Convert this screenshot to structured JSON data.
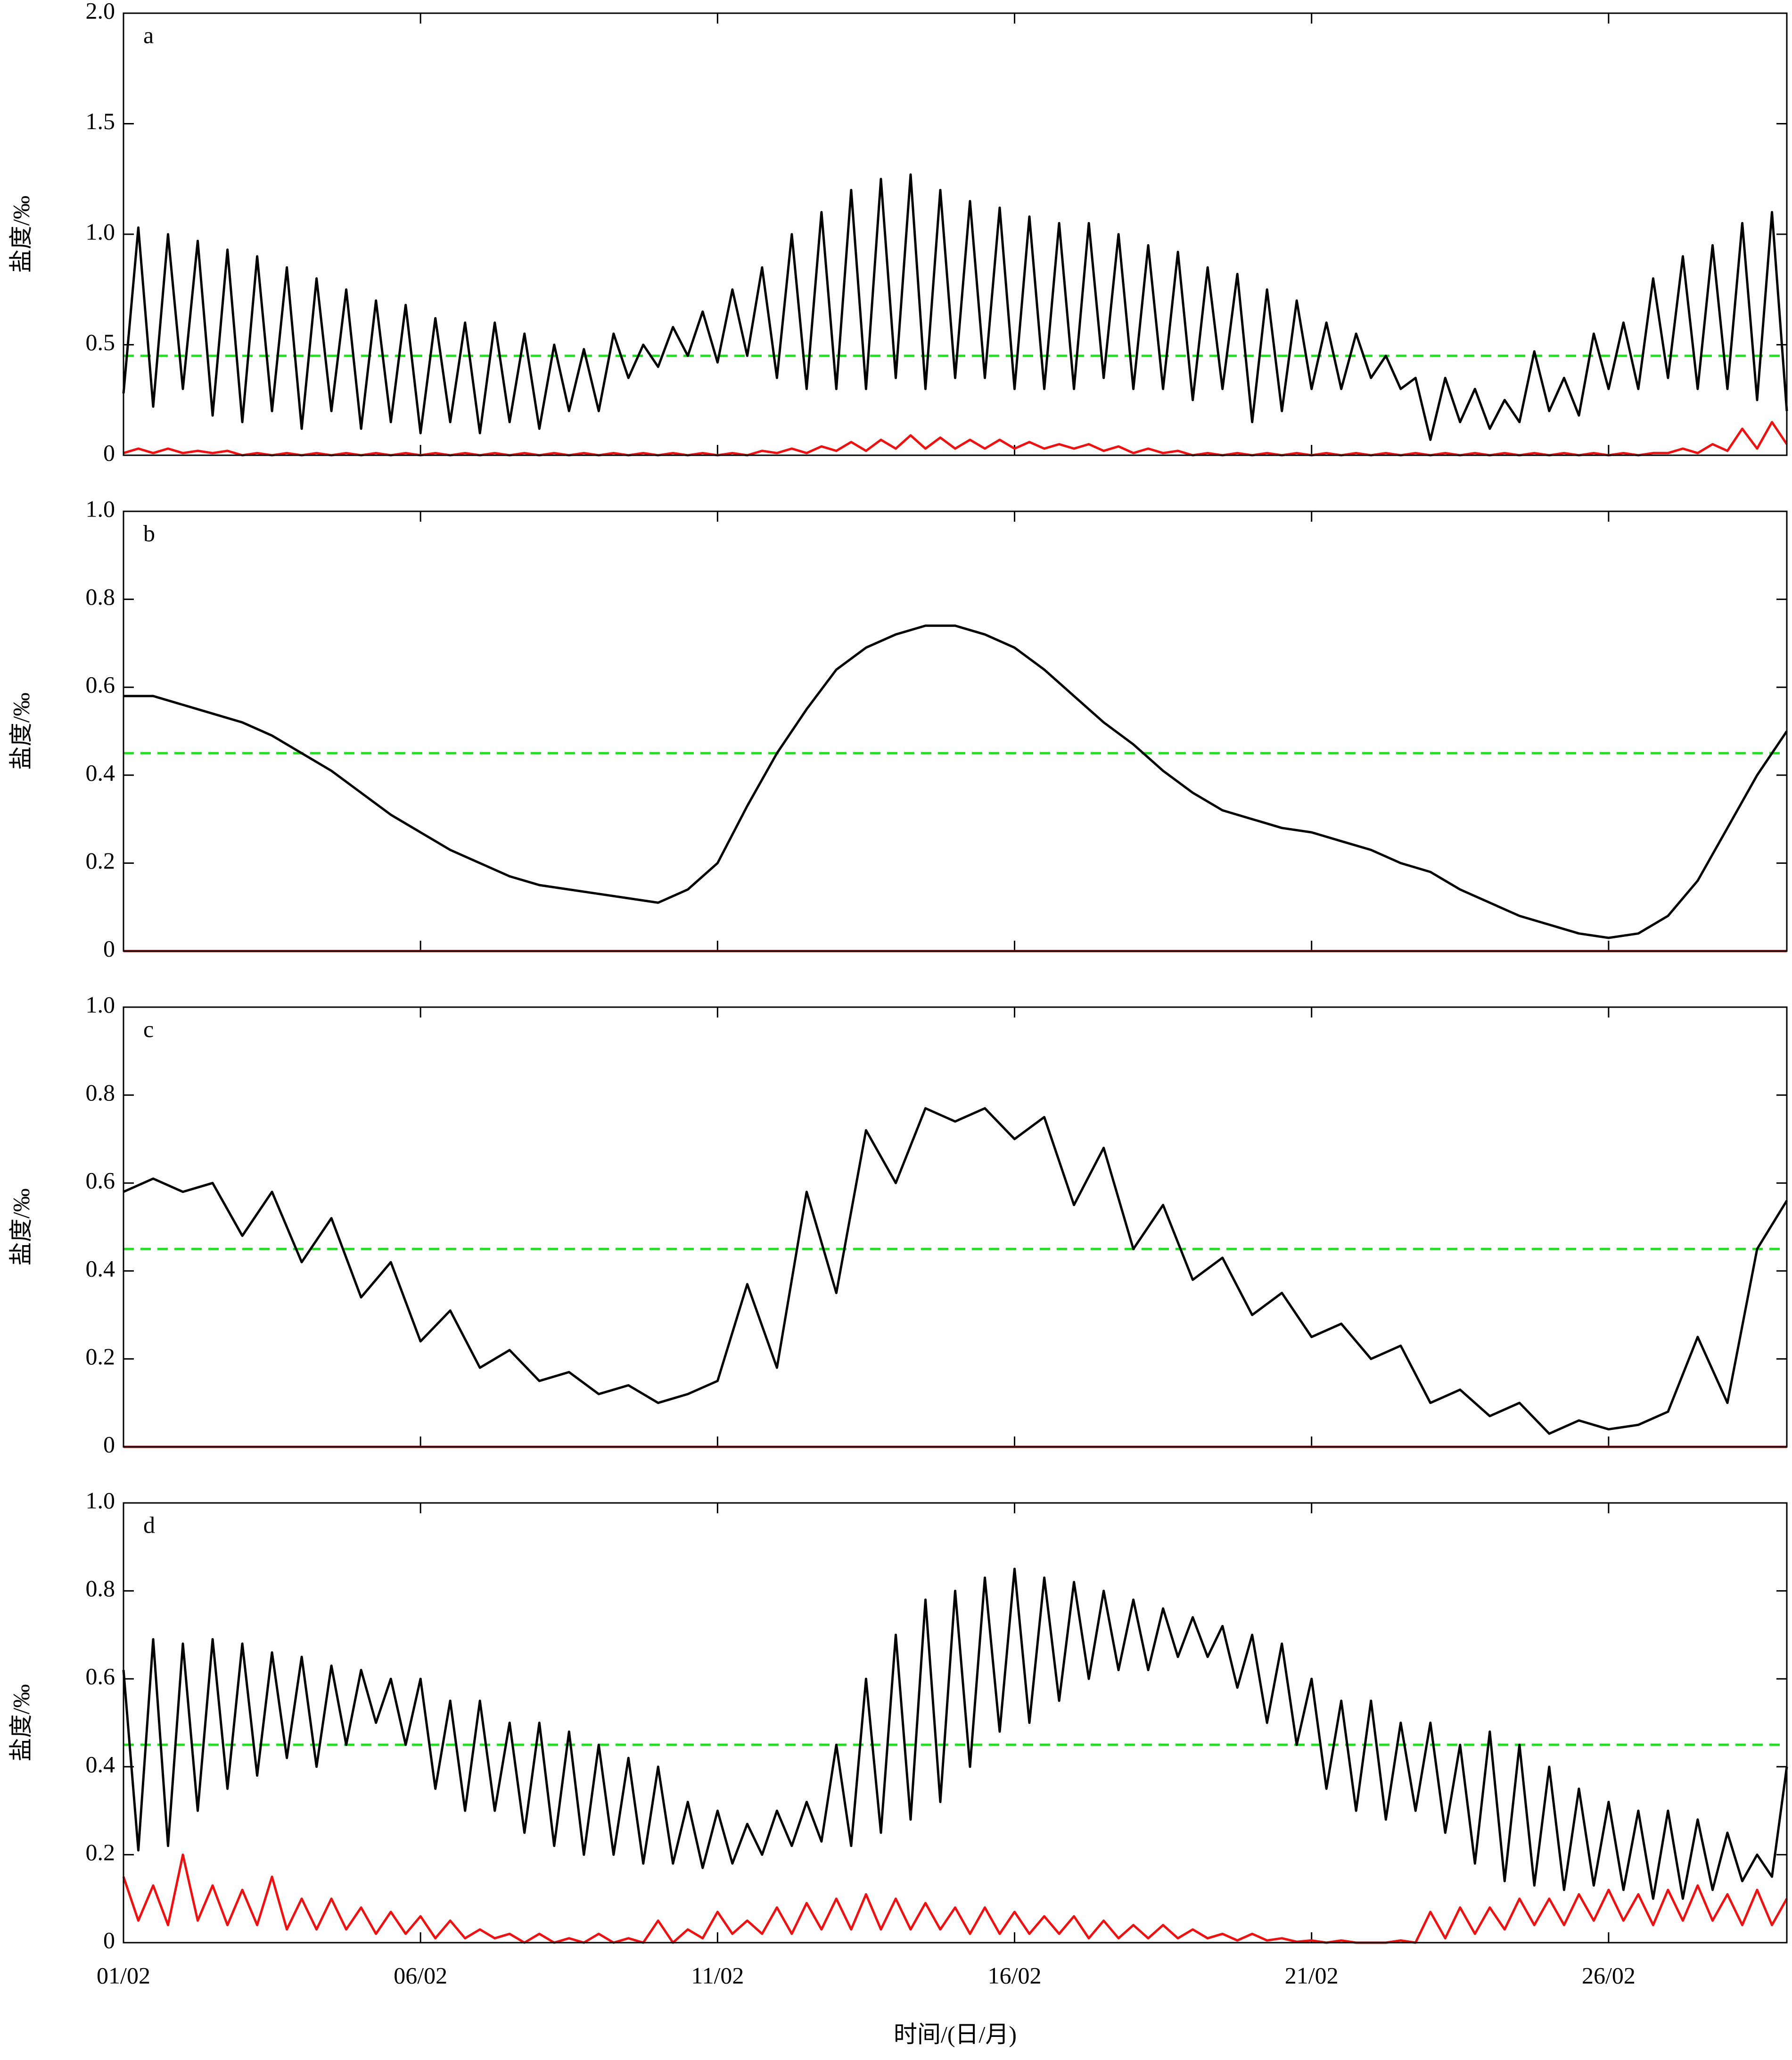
{
  "chart_data": [
    {
      "type": "line",
      "label": "a",
      "ylabel": "盐度/‰",
      "xlim": [
        0,
        28
      ],
      "ylim": [
        0,
        2
      ],
      "yticks": [
        0,
        0.5,
        {
          "value": 1,
          "label": "1.0"
        },
        1.5,
        {
          "value": 2,
          "label": "2.0"
        }
      ],
      "reference_line": {
        "value": 0.45,
        "color": "#22dd22"
      },
      "x": [
        0,
        0.25,
        0.5,
        0.75,
        1,
        1.25,
        1.5,
        1.75,
        2,
        2.25,
        2.5,
        2.75,
        3,
        3.25,
        3.5,
        3.75,
        4,
        4.25,
        4.5,
        4.75,
        5,
        5.25,
        5.5,
        5.75,
        6,
        6.25,
        6.5,
        6.75,
        7,
        7.25,
        7.5,
        7.75,
        8,
        8.25,
        8.5,
        8.75,
        9,
        9.25,
        9.5,
        9.75,
        10,
        10.25,
        10.5,
        10.75,
        11,
        11.25,
        11.5,
        11.75,
        12,
        12.25,
        12.5,
        12.75,
        13,
        13.25,
        13.5,
        13.75,
        14,
        14.25,
        14.5,
        14.75,
        15,
        15.25,
        15.5,
        15.75,
        16,
        16.25,
        16.5,
        16.75,
        17,
        17.25,
        17.5,
        17.75,
        18,
        18.25,
        18.5,
        18.75,
        19,
        19.25,
        19.5,
        19.75,
        20,
        20.25,
        20.5,
        20.75,
        21,
        21.25,
        21.5,
        21.75,
        22,
        22.25,
        22.5,
        22.75,
        23,
        23.25,
        23.5,
        23.75,
        24,
        24.25,
        24.5,
        24.75,
        25,
        25.25,
        25.5,
        25.75,
        26,
        26.25,
        26.5,
        26.75,
        27,
        27.25,
        27.5,
        27.75,
        28
      ],
      "series": [
        {
          "color": "#000000",
          "values": [
            0.28,
            1.03,
            0.22,
            1.0,
            0.3,
            0.97,
            0.18,
            0.93,
            0.15,
            0.9,
            0.2,
            0.85,
            0.12,
            0.8,
            0.2,
            0.75,
            0.12,
            0.7,
            0.15,
            0.68,
            0.1,
            0.62,
            0.15,
            0.6,
            0.1,
            0.6,
            0.15,
            0.55,
            0.12,
            0.5,
            0.2,
            0.48,
            0.2,
            0.55,
            0.35,
            0.5,
            0.4,
            0.58,
            0.45,
            0.65,
            0.42,
            0.75,
            0.45,
            0.85,
            0.35,
            1.0,
            0.3,
            1.1,
            0.3,
            1.2,
            0.3,
            1.25,
            0.35,
            1.27,
            0.3,
            1.2,
            0.35,
            1.15,
            0.35,
            1.12,
            0.3,
            1.08,
            0.3,
            1.05,
            0.3,
            1.05,
            0.35,
            1.0,
            0.3,
            0.95,
            0.3,
            0.92,
            0.25,
            0.85,
            0.3,
            0.82,
            0.15,
            0.75,
            0.2,
            0.7,
            0.3,
            0.6,
            0.3,
            0.55,
            0.35,
            0.45,
            0.3,
            0.35,
            0.07,
            0.35,
            0.15,
            0.3,
            0.12,
            0.25,
            0.15,
            0.47,
            0.2,
            0.35,
            0.18,
            0.55,
            0.3,
            0.6,
            0.3,
            0.8,
            0.35,
            0.9,
            0.3,
            0.95,
            0.3,
            1.05,
            0.25,
            1.1,
            0.2
          ]
        },
        {
          "color": "#ee1111",
          "values": [
            0.01,
            0.03,
            0.01,
            0.03,
            0.01,
            0.02,
            0.01,
            0.02,
            0,
            0.01,
            0,
            0.01,
            0,
            0.01,
            0,
            0.01,
            0,
            0.01,
            0,
            0.01,
            0,
            0.01,
            0,
            0.01,
            0,
            0.01,
            0,
            0.01,
            0,
            0.01,
            0,
            0.01,
            0,
            0.01,
            0,
            0.01,
            0,
            0.01,
            0,
            0.01,
            0,
            0.01,
            0,
            0.02,
            0.01,
            0.03,
            0.01,
            0.04,
            0.02,
            0.06,
            0.02,
            0.07,
            0.03,
            0.09,
            0.03,
            0.08,
            0.03,
            0.07,
            0.03,
            0.07,
            0.03,
            0.06,
            0.03,
            0.05,
            0.03,
            0.05,
            0.02,
            0.04,
            0.01,
            0.03,
            0.01,
            0.02,
            0,
            0.01,
            0,
            0.01,
            0,
            0.01,
            0,
            0.01,
            0,
            0.01,
            0,
            0.01,
            0,
            0.01,
            0,
            0.01,
            0,
            0.01,
            0,
            0.01,
            0,
            0.01,
            0,
            0.01,
            0,
            0.01,
            0,
            0.01,
            0,
            0.01,
            0,
            0.01,
            0.01,
            0.03,
            0.01,
            0.05,
            0.02,
            0.12,
            0.03,
            0.15,
            0.05
          ]
        }
      ]
    },
    {
      "type": "line",
      "label": "b",
      "ylabel": "盐度/‰",
      "xlim": [
        0,
        28
      ],
      "ylim": [
        0,
        1
      ],
      "yticks": [
        0,
        0.2,
        0.4,
        0.6,
        0.8,
        {
          "value": 1,
          "label": "1.0"
        }
      ],
      "reference_line": {
        "value": 0.45,
        "color": "#22dd22"
      },
      "x": [
        0,
        0.5,
        1,
        1.5,
        2,
        2.5,
        3,
        3.5,
        4,
        4.5,
        5,
        5.5,
        6,
        6.5,
        7,
        7.5,
        8,
        8.5,
        9,
        9.5,
        10,
        10.5,
        11,
        11.5,
        12,
        12.5,
        13,
        13.5,
        14,
        14.5,
        15,
        15.5,
        16,
        16.5,
        17,
        17.5,
        18,
        18.5,
        19,
        19.5,
        20,
        20.5,
        21,
        21.5,
        22,
        22.5,
        23,
        23.5,
        24,
        24.5,
        25,
        25.5,
        26,
        26.5,
        27,
        27.5,
        28
      ],
      "series": [
        {
          "color": "#000000",
          "values": [
            0.58,
            0.58,
            0.56,
            0.54,
            0.52,
            0.49,
            0.45,
            0.41,
            0.36,
            0.31,
            0.27,
            0.23,
            0.2,
            0.17,
            0.15,
            0.14,
            0.13,
            0.12,
            0.11,
            0.14,
            0.2,
            0.33,
            0.45,
            0.55,
            0.64,
            0.69,
            0.72,
            0.74,
            0.74,
            0.72,
            0.69,
            0.64,
            0.58,
            0.52,
            0.47,
            0.41,
            0.36,
            0.32,
            0.3,
            0.28,
            0.27,
            0.25,
            0.23,
            0.2,
            0.18,
            0.14,
            0.11,
            0.08,
            0.06,
            0.04,
            0.03,
            0.04,
            0.08,
            0.16,
            0.28,
            0.4,
            0.5
          ]
        },
        {
          "color": "#ee1111",
          "values": [
            0,
            0,
            0,
            0,
            0,
            0,
            0,
            0,
            0,
            0,
            0,
            0,
            0,
            0,
            0,
            0,
            0,
            0,
            0,
            0,
            0,
            0,
            0,
            0,
            0,
            0,
            0,
            0,
            0,
            0,
            0,
            0,
            0,
            0,
            0,
            0,
            0,
            0,
            0,
            0,
            0,
            0,
            0,
            0,
            0,
            0,
            0,
            0,
            0,
            0,
            0,
            0,
            0,
            0,
            0,
            0,
            0
          ]
        }
      ]
    },
    {
      "type": "line",
      "label": "c",
      "ylabel": "盐度/‰",
      "xlim": [
        0,
        28
      ],
      "ylim": [
        0,
        1
      ],
      "yticks": [
        0,
        0.2,
        0.4,
        0.6,
        0.8,
        {
          "value": 1,
          "label": "1.0"
        }
      ],
      "reference_line": {
        "value": 0.45,
        "color": "#22dd22"
      },
      "x": [
        0,
        0.5,
        1,
        1.5,
        2,
        2.5,
        3,
        3.5,
        4,
        4.5,
        5,
        5.5,
        6,
        6.5,
        7,
        7.5,
        8,
        8.5,
        9,
        9.5,
        10,
        10.5,
        11,
        11.5,
        12,
        12.5,
        13,
        13.5,
        14,
        14.5,
        15,
        15.5,
        16,
        16.5,
        17,
        17.5,
        18,
        18.5,
        19,
        19.5,
        20,
        20.5,
        21,
        21.5,
        22,
        22.5,
        23,
        23.5,
        24,
        24.5,
        25,
        25.5,
        26,
        26.5,
        27,
        27.5,
        28
      ],
      "series": [
        {
          "color": "#000000",
          "values": [
            0.58,
            0.61,
            0.58,
            0.6,
            0.48,
            0.58,
            0.42,
            0.52,
            0.34,
            0.42,
            0.24,
            0.31,
            0.18,
            0.22,
            0.15,
            0.17,
            0.12,
            0.14,
            0.1,
            0.12,
            0.15,
            0.37,
            0.18,
            0.58,
            0.35,
            0.72,
            0.6,
            0.77,
            0.74,
            0.77,
            0.7,
            0.75,
            0.55,
            0.68,
            0.45,
            0.55,
            0.38,
            0.43,
            0.3,
            0.35,
            0.25,
            0.28,
            0.2,
            0.23,
            0.1,
            0.13,
            0.07,
            0.1,
            0.03,
            0.06,
            0.04,
            0.05,
            0.08,
            0.25,
            0.1,
            0.45,
            0.56
          ]
        },
        {
          "color": "#ee1111",
          "values": [
            0,
            0,
            0,
            0,
            0,
            0,
            0,
            0,
            0,
            0,
            0,
            0,
            0,
            0,
            0,
            0,
            0,
            0,
            0,
            0,
            0,
            0,
            0,
            0,
            0,
            0,
            0,
            0,
            0,
            0,
            0,
            0,
            0,
            0,
            0,
            0,
            0,
            0,
            0,
            0,
            0,
            0,
            0,
            0,
            0,
            0,
            0,
            0,
            0,
            0,
            0,
            0,
            0,
            0,
            0,
            0,
            0
          ]
        }
      ]
    },
    {
      "type": "line",
      "label": "d",
      "ylabel": "盐度/‰",
      "xlabel": "时间/(日/月)",
      "xlim": [
        0,
        28
      ],
      "ylim": [
        0,
        1
      ],
      "yticks": [
        0,
        0.2,
        0.4,
        0.6,
        0.8,
        {
          "value": 1,
          "label": "1.0"
        }
      ],
      "xticks": [
        {
          "value": 0,
          "label": "01/02"
        },
        {
          "value": 5,
          "label": "06/02"
        },
        {
          "value": 10,
          "label": "11/02"
        },
        {
          "value": 15,
          "label": "16/02"
        },
        {
          "value": 20,
          "label": "21/02"
        },
        {
          "value": 25,
          "label": "26/02"
        }
      ],
      "reference_line": {
        "value": 0.45,
        "color": "#22dd22"
      },
      "x": [
        0,
        0.25,
        0.5,
        0.75,
        1,
        1.25,
        1.5,
        1.75,
        2,
        2.25,
        2.5,
        2.75,
        3,
        3.25,
        3.5,
        3.75,
        4,
        4.25,
        4.5,
        4.75,
        5,
        5.25,
        5.5,
        5.75,
        6,
        6.25,
        6.5,
        6.75,
        7,
        7.25,
        7.5,
        7.75,
        8,
        8.25,
        8.5,
        8.75,
        9,
        9.25,
        9.5,
        9.75,
        10,
        10.25,
        10.5,
        10.75,
        11,
        11.25,
        11.5,
        11.75,
        12,
        12.25,
        12.5,
        12.75,
        13,
        13.25,
        13.5,
        13.75,
        14,
        14.25,
        14.5,
        14.75,
        15,
        15.25,
        15.5,
        15.75,
        16,
        16.25,
        16.5,
        16.75,
        17,
        17.25,
        17.5,
        17.75,
        18,
        18.25,
        18.5,
        18.75,
        19,
        19.25,
        19.5,
        19.75,
        20,
        20.25,
        20.5,
        20.75,
        21,
        21.25,
        21.5,
        21.75,
        22,
        22.25,
        22.5,
        22.75,
        23,
        23.25,
        23.5,
        23.75,
        24,
        24.25,
        24.5,
        24.75,
        25,
        25.25,
        25.5,
        25.75,
        26,
        26.25,
        26.5,
        26.75,
        27,
        27.25,
        27.5,
        27.75,
        28
      ],
      "series": [
        {
          "color": "#000000",
          "values": [
            0.62,
            0.21,
            0.69,
            0.22,
            0.68,
            0.3,
            0.69,
            0.35,
            0.68,
            0.38,
            0.66,
            0.42,
            0.65,
            0.4,
            0.63,
            0.45,
            0.62,
            0.5,
            0.6,
            0.45,
            0.6,
            0.35,
            0.55,
            0.3,
            0.55,
            0.3,
            0.5,
            0.25,
            0.5,
            0.22,
            0.48,
            0.2,
            0.45,
            0.2,
            0.42,
            0.18,
            0.4,
            0.18,
            0.32,
            0.17,
            0.3,
            0.18,
            0.27,
            0.2,
            0.3,
            0.22,
            0.32,
            0.23,
            0.45,
            0.22,
            0.6,
            0.25,
            0.7,
            0.28,
            0.78,
            0.32,
            0.8,
            0.4,
            0.83,
            0.48,
            0.85,
            0.5,
            0.83,
            0.55,
            0.82,
            0.6,
            0.8,
            0.62,
            0.78,
            0.62,
            0.76,
            0.65,
            0.74,
            0.65,
            0.72,
            0.58,
            0.7,
            0.5,
            0.68,
            0.45,
            0.6,
            0.35,
            0.55,
            0.3,
            0.55,
            0.28,
            0.5,
            0.3,
            0.5,
            0.25,
            0.45,
            0.18,
            0.48,
            0.14,
            0.45,
            0.13,
            0.4,
            0.12,
            0.35,
            0.13,
            0.32,
            0.12,
            0.3,
            0.1,
            0.3,
            0.1,
            0.28,
            0.12,
            0.25,
            0.14,
            0.2,
            0.15,
            0.4
          ]
        },
        {
          "color": "#ee1111",
          "values": [
            0.15,
            0.05,
            0.13,
            0.04,
            0.2,
            0.05,
            0.13,
            0.04,
            0.12,
            0.04,
            0.15,
            0.03,
            0.1,
            0.03,
            0.1,
            0.03,
            0.08,
            0.02,
            0.07,
            0.02,
            0.06,
            0.01,
            0.05,
            0.01,
            0.03,
            0.01,
            0.02,
            0,
            0.02,
            0,
            0.01,
            0,
            0.02,
            0,
            0.01,
            0,
            0.05,
            0,
            0.03,
            0.01,
            0.07,
            0.02,
            0.05,
            0.02,
            0.08,
            0.02,
            0.09,
            0.03,
            0.1,
            0.03,
            0.11,
            0.03,
            0.1,
            0.03,
            0.09,
            0.03,
            0.08,
            0.02,
            0.08,
            0.02,
            0.07,
            0.02,
            0.06,
            0.02,
            0.06,
            0.01,
            0.05,
            0.01,
            0.04,
            0.01,
            0.04,
            0.01,
            0.03,
            0.01,
            0.02,
            0.005,
            0.02,
            0.005,
            0.01,
            0.002,
            0.005,
            0,
            0.005,
            0,
            0,
            0,
            0.005,
            0,
            0.07,
            0.01,
            0.08,
            0.02,
            0.08,
            0.03,
            0.1,
            0.04,
            0.1,
            0.04,
            0.11,
            0.05,
            0.12,
            0.05,
            0.11,
            0.04,
            0.12,
            0.05,
            0.13,
            0.05,
            0.11,
            0.04,
            0.12,
            0.04,
            0.1
          ]
        }
      ]
    }
  ]
}
